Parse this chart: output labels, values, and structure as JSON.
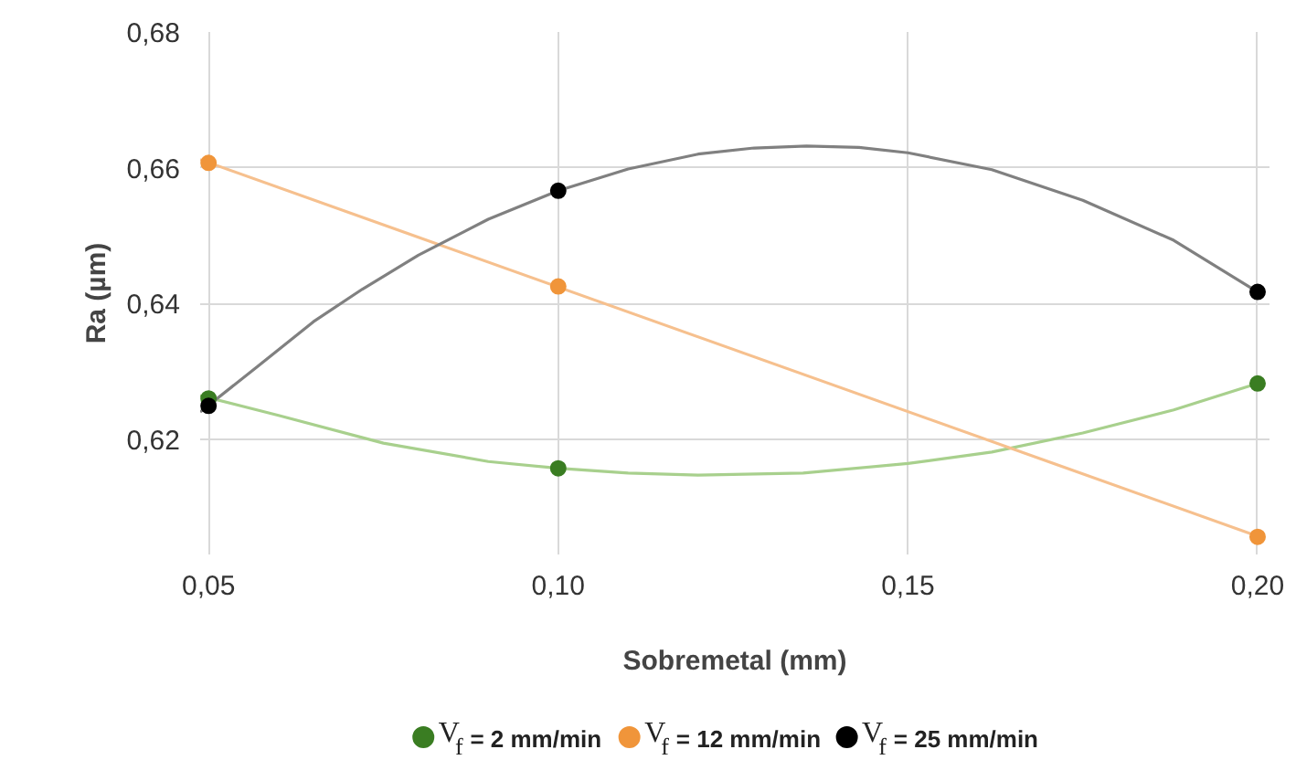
{
  "chart_data": {
    "type": "scatter",
    "xlabel": "Sobremetal (mm)",
    "ylabel": "Ra (µm)",
    "xlim": [
      0.0488,
      0.2017
    ],
    "ylim": [
      0.603,
      0.68
    ],
    "xticks": [
      {
        "value": 0.05,
        "label": "0,05"
      },
      {
        "value": 0.1,
        "label": "0,10"
      },
      {
        "value": 0.15,
        "label": "0,15"
      },
      {
        "value": 0.2,
        "label": "0,20"
      }
    ],
    "yticks": [
      {
        "value": 0.62,
        "label": "0,62"
      },
      {
        "value": 0.64,
        "label": "0,64"
      },
      {
        "value": 0.66,
        "label": "0,66"
      },
      {
        "value": 0.68,
        "label": "0,68"
      }
    ],
    "grid": true,
    "legend": "bottom",
    "marker": "circle",
    "series": [
      {
        "type": "line",
        "marker": "none",
        "color": "#a8d08d",
        "x": [
          0.0488,
          0.06,
          0.075,
          0.09,
          0.1,
          0.11,
          0.12,
          0.135,
          0.15,
          0.162,
          0.175,
          0.188,
          0.2
        ],
        "values": [
          0.6264,
          0.6235,
          0.6194,
          0.6167,
          0.6157,
          0.615,
          0.6147,
          0.615,
          0.6164,
          0.6181,
          0.6209,
          0.6243,
          0.6282
        ]
      },
      {
        "type": "line",
        "marker": "none",
        "color": "#f6c08e",
        "x": [
          0.0488,
          0.2
        ],
        "values": [
          0.6612,
          0.6057
        ]
      },
      {
        "type": "line",
        "marker": "none",
        "color": "#808080",
        "x": [
          0.0488,
          0.057,
          0.065,
          0.072,
          0.08,
          0.09,
          0.1,
          0.11,
          0.12,
          0.128,
          0.1355,
          0.143,
          0.15,
          0.162,
          0.175,
          0.188,
          0.2
        ],
        "values": [
          0.624,
          0.6307,
          0.6373,
          0.6421,
          0.6471,
          0.6524,
          0.6566,
          0.6598,
          0.662,
          0.6629,
          0.6632,
          0.663,
          0.6622,
          0.6597,
          0.6552,
          0.6493,
          0.6417
        ]
      },
      {
        "name": "V$_{f}$ = 2 mm/min",
        "color": "#3a7d22",
        "x": [
          0.05,
          0.1,
          0.2
        ],
        "values": [
          0.626,
          0.6157,
          0.6282
        ]
      },
      {
        "name": "V$_{f}$ = 12 mm/min",
        "color": "#f0953a",
        "x": [
          0.05,
          0.1,
          0.2
        ],
        "values": [
          0.6607,
          0.6425,
          0.6056
        ]
      },
      {
        "name": "V$_{f}$ = 25 mm/min",
        "color": "#000000",
        "x": [
          0.05,
          0.1,
          0.2
        ],
        "values": [
          0.6249,
          0.6566,
          0.6417
        ]
      }
    ]
  }
}
